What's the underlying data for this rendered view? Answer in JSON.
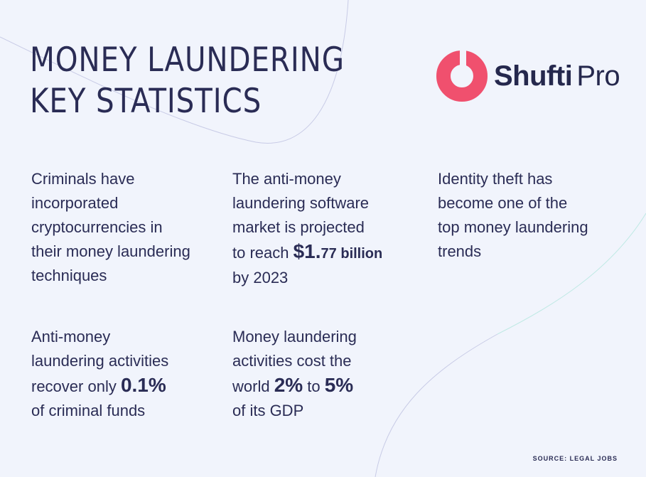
{
  "header": {
    "title_line1": "MONEY LAUNDERING",
    "title_line2": "KEY STATISTICS"
  },
  "logo": {
    "word1": "Shufti",
    "word2": "Pro",
    "brand_color": "#f0506e"
  },
  "stats": [
    {
      "lines": [
        "Criminals have",
        "incorporated",
        "cryptocurrencies in",
        "their money laundering",
        "techniques"
      ]
    },
    {
      "lines_pre": [
        "The anti-money",
        "laundering software",
        "market is projected"
      ],
      "reach_prefix": "to reach ",
      "amount_big": "$1.",
      "amount_small": "77 billion",
      "line_post": "by 2023"
    },
    {
      "lines": [
        "Identity theft has",
        "become one of the",
        "top money laundering",
        "trends"
      ]
    },
    {
      "lines_pre": [
        "Anti-money",
        "laundering activities"
      ],
      "recover_prefix": "recover only ",
      "percent": "0.1%",
      "line_post": "of criminal funds"
    },
    {
      "lines_pre": [
        "Money laundering",
        "activities cost the"
      ],
      "world_prefix": "world ",
      "low": "2%",
      "to": " to ",
      "high": "5%",
      "line_post": "of its GDP"
    }
  ],
  "footer": {
    "source": "SOURCE: LEGAL JOBS"
  },
  "colors": {
    "background": "#f1f4fc",
    "text": "#2a2c55",
    "accent_line": "#c9cde8",
    "accent_line_teal": "#bfe9e4"
  }
}
